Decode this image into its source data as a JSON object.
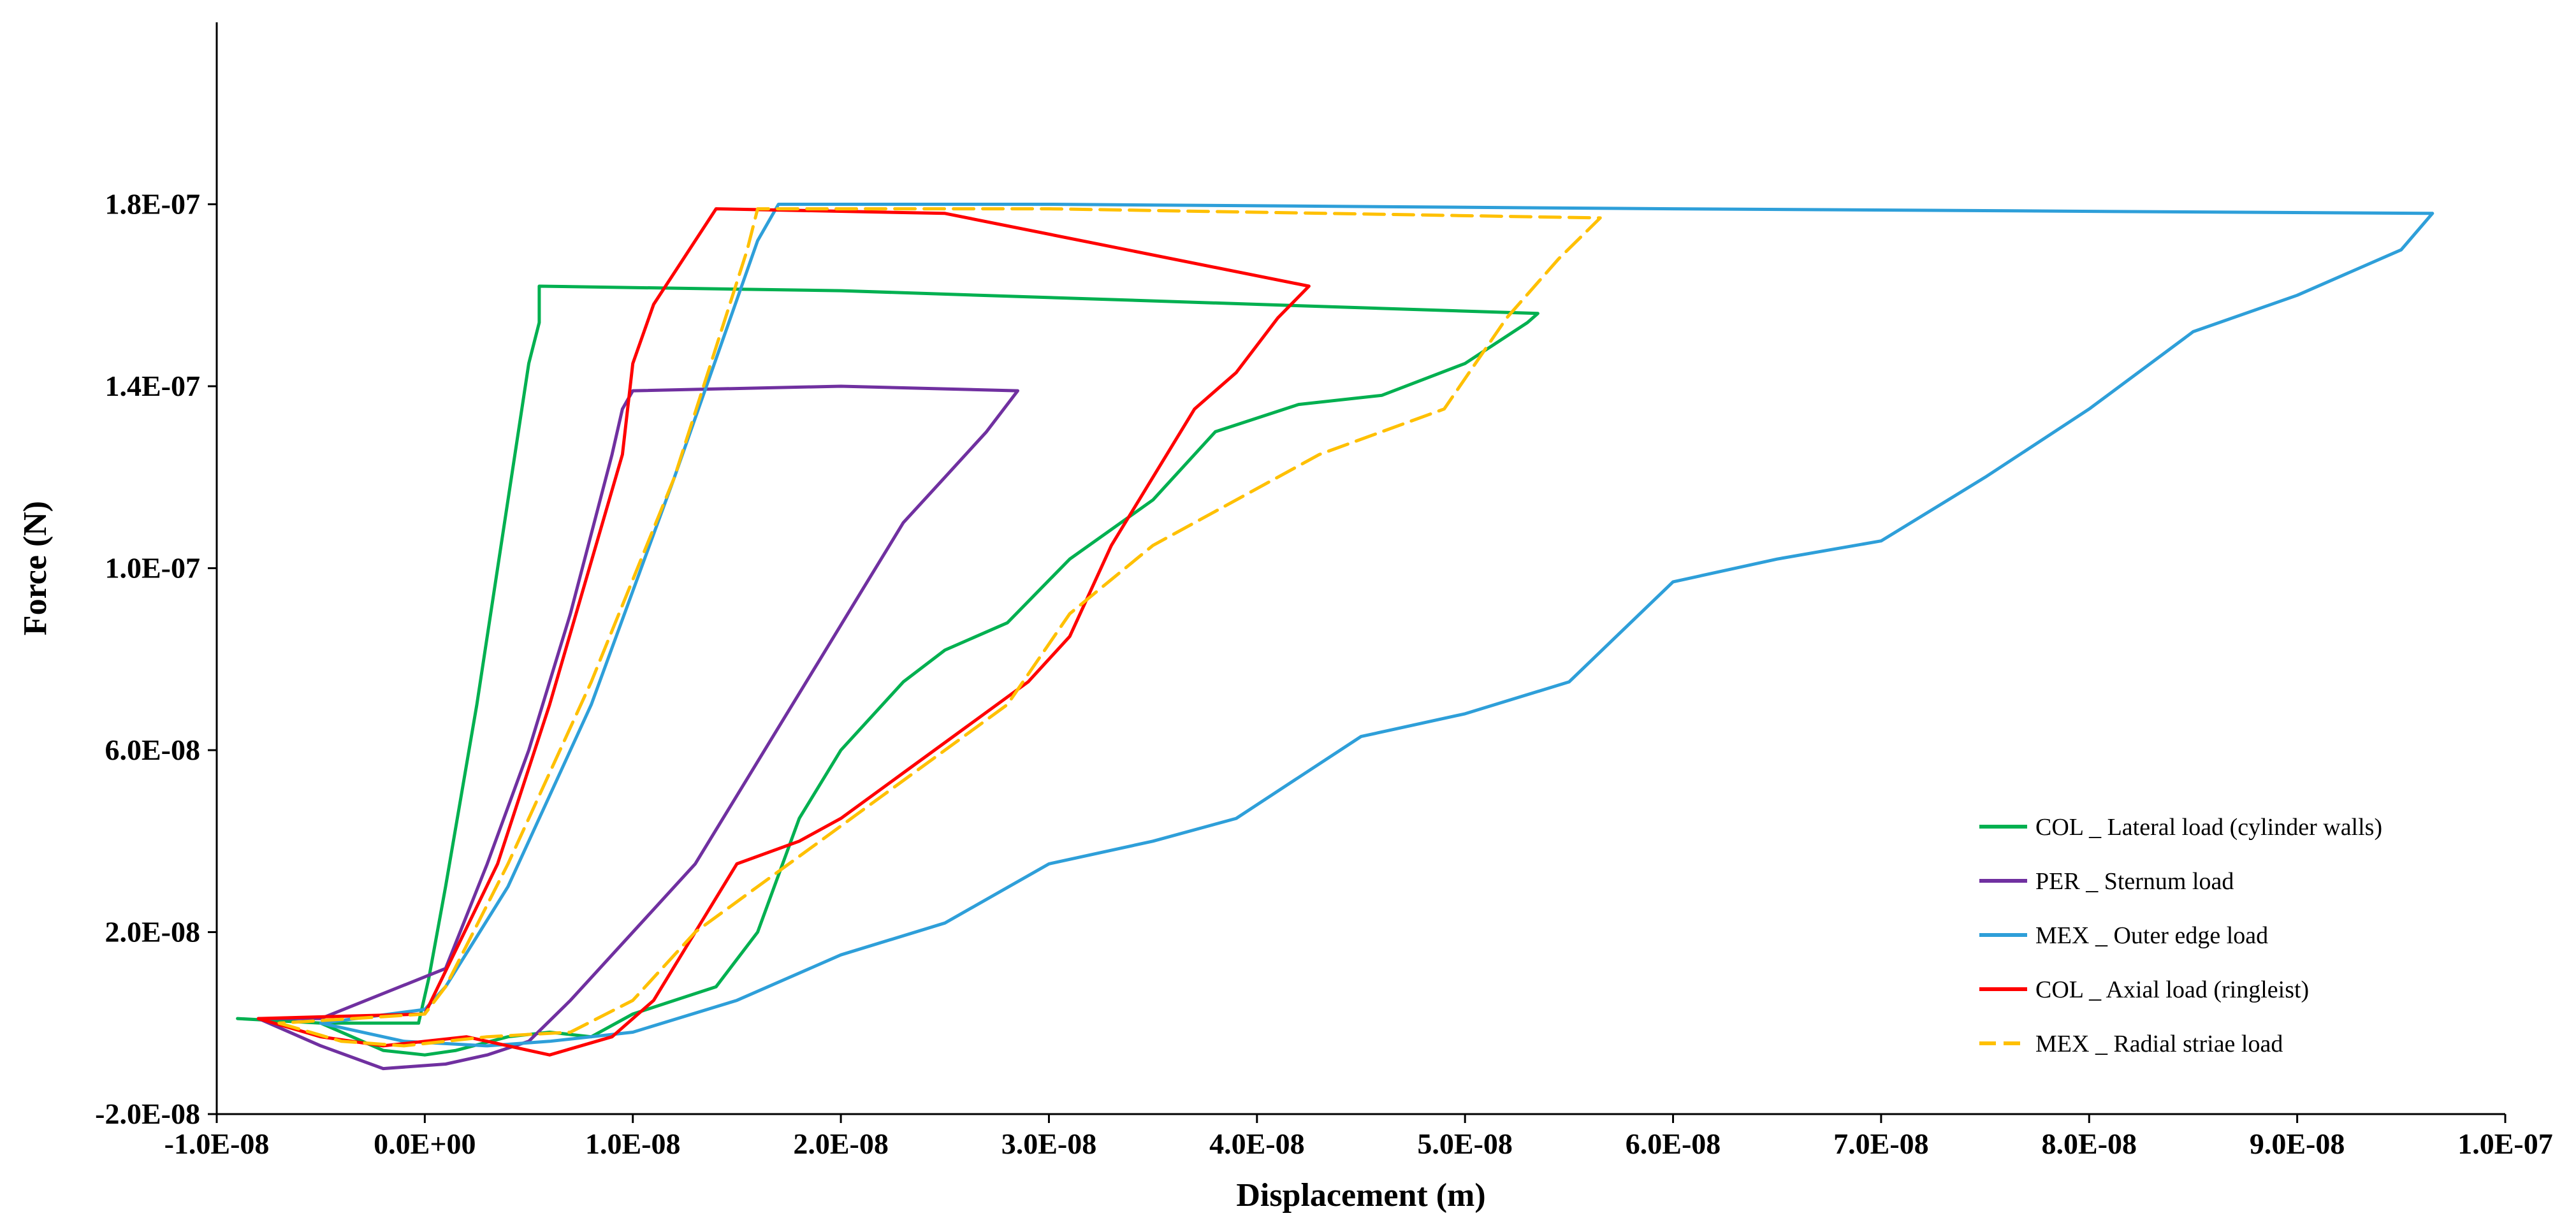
{
  "chart_data": {
    "type": "line",
    "title": "",
    "xlabel": "Displacement (m)",
    "ylabel": "Force (N)",
    "xlim": [
      -1e-08,
      1e-07
    ],
    "ylim": [
      -2e-08,
      2.2e-07
    ],
    "x_ticks": [
      {
        "value": -1e-08,
        "label": "-1.0E-08"
      },
      {
        "value": 0,
        "label": "0.0E+00"
      },
      {
        "value": 1e-08,
        "label": "1.0E-08"
      },
      {
        "value": 2e-08,
        "label": "2.0E-08"
      },
      {
        "value": 3e-08,
        "label": "3.0E-08"
      },
      {
        "value": 4e-08,
        "label": "4.0E-08"
      },
      {
        "value": 5e-08,
        "label": "5.0E-08"
      },
      {
        "value": 6e-08,
        "label": "6.0E-08"
      },
      {
        "value": 7e-08,
        "label": "7.0E-08"
      },
      {
        "value": 8e-08,
        "label": "8.0E-08"
      },
      {
        "value": 9e-08,
        "label": "9.0E-08"
      },
      {
        "value": 1e-07,
        "label": "1.0E-07"
      }
    ],
    "y_ticks": [
      {
        "value": -2e-08,
        "label": "-2.0E-08"
      },
      {
        "value": 2e-08,
        "label": "2.0E-08"
      },
      {
        "value": 6e-08,
        "label": "6.0E-08"
      },
      {
        "value": 1e-07,
        "label": "1.0E-07"
      },
      {
        "value": 1.4e-07,
        "label": "1.4E-07"
      },
      {
        "value": 1.8e-07,
        "label": "1.8E-07"
      }
    ],
    "grid": false,
    "legend_position": "bottom-right",
    "series": [
      {
        "name": "COL _ Lateral load (cylinder walls)",
        "color": "#00b050",
        "dash": "solid",
        "x": [
          -9e-09,
          -5e-09,
          -2e-09,
          0,
          1.5e-09,
          4e-09,
          6e-09,
          8e-09,
          1e-08,
          1.2e-08,
          1.4e-08,
          1.6e-08,
          1.8e-08,
          2e-08,
          2.3e-08,
          2.5e-08,
          2.8e-08,
          3.1e-08,
          3.5e-08,
          3.8e-08,
          4.2e-08,
          4.6e-08,
          5e-08,
          5.3e-08,
          5.35e-08,
          4e-08,
          2e-08,
          5.5e-09,
          5.5e-09,
          5e-09,
          4e-09,
          2.5e-09,
          1e-09,
          2e-10,
          -3e-10,
          -5e-09,
          -9e-09
        ],
        "y": [
          1e-09,
          0.0,
          -6e-09,
          -7e-09,
          -6e-09,
          -3e-09,
          -2e-09,
          -3e-09,
          2e-09,
          5e-09,
          8e-09,
          2e-08,
          4.5e-08,
          6e-08,
          7.5e-08,
          8.2e-08,
          8.8e-08,
          1.02e-07,
          1.15e-07,
          1.3e-07,
          1.36e-07,
          1.38e-07,
          1.45e-07,
          1.54e-07,
          1.56e-07,
          1.58e-07,
          1.61e-07,
          1.62e-07,
          1.54e-07,
          1.45e-07,
          1.15e-07,
          7e-08,
          3e-08,
          1e-08,
          0.0,
          0.0,
          1e-09
        ]
      },
      {
        "name": "PER _ Sternum load",
        "color": "#7030a0",
        "dash": "solid",
        "x": [
          -8e-09,
          -5e-09,
          -2e-09,
          1e-09,
          3e-09,
          5e-09,
          7e-09,
          9e-09,
          1.1e-08,
          1.3e-08,
          1.5e-08,
          1.7e-08,
          1.9e-08,
          2.1e-08,
          2.3e-08,
          2.5e-08,
          2.7e-08,
          2.85e-08,
          2e-08,
          1e-08,
          9.5e-09,
          9e-09,
          7e-09,
          5e-09,
          3e-09,
          1e-09,
          -5e-09,
          -8e-09
        ],
        "y": [
          1e-09,
          -5e-09,
          -1e-08,
          -9e-09,
          -7e-09,
          -4e-09,
          5e-09,
          1.5e-08,
          2.5e-08,
          3.5e-08,
          5e-08,
          6.5e-08,
          8e-08,
          9.5e-08,
          1.1e-07,
          1.2e-07,
          1.3e-07,
          1.39e-07,
          1.4e-07,
          1.39e-07,
          1.35e-07,
          1.25e-07,
          9e-08,
          6e-08,
          3.5e-08,
          1.2e-08,
          1e-09,
          1e-09
        ]
      },
      {
        "name": "MEX _ Outer edge load",
        "color": "#2e9fd9",
        "dash": "solid",
        "x": [
          -5e-09,
          -1e-09,
          3e-09,
          6e-09,
          1e-08,
          1.5e-08,
          2e-08,
          2.5e-08,
          3e-08,
          3.5e-08,
          3.9e-08,
          4.5e-08,
          5e-08,
          5.5e-08,
          6e-08,
          6.5e-08,
          7e-08,
          7.5e-08,
          8e-08,
          8.5e-08,
          9e-08,
          9.5e-08,
          9.65e-08,
          6e-08,
          3e-08,
          1.7e-08,
          1.6e-08,
          1.2e-08,
          8e-09,
          4e-09,
          1e-09,
          0,
          -5e-09
        ],
        "y": [
          0.0,
          -4e-09,
          -5e-09,
          -4e-09,
          -2e-09,
          5e-09,
          1.5e-08,
          2.2e-08,
          3.5e-08,
          4e-08,
          4.5e-08,
          6.3e-08,
          6.8e-08,
          7.5e-08,
          9.7e-08,
          1.02e-07,
          1.06e-07,
          1.2e-07,
          1.35e-07,
          1.52e-07,
          1.6e-07,
          1.7e-07,
          1.78e-07,
          1.79e-07,
          1.8e-07,
          1.8e-07,
          1.72e-07,
          1.2e-07,
          7e-08,
          3e-08,
          8e-09,
          3e-09,
          0.0
        ]
      },
      {
        "name": "COL _ Axial load (ringleist)",
        "color": "#ff0000",
        "dash": "solid",
        "x": [
          -8e-09,
          -5e-09,
          -2e-09,
          2e-09,
          6e-09,
          9e-09,
          1.1e-08,
          1.3e-08,
          1.5e-08,
          1.8e-08,
          2e-08,
          2.3e-08,
          2.6e-08,
          2.9e-08,
          3.1e-08,
          3.3e-08,
          3.5e-08,
          3.7e-08,
          3.9e-08,
          4.1e-08,
          4.25e-08,
          2.5e-08,
          1.4e-08,
          1.1e-08,
          1e-08,
          9.5e-09,
          6e-09,
          3.5e-09,
          0,
          -8e-09
        ],
        "y": [
          1e-09,
          -3e-09,
          -5e-09,
          -3e-09,
          -7e-09,
          -3e-09,
          5e-09,
          2e-08,
          3.5e-08,
          4e-08,
          4.5e-08,
          5.5e-08,
          6.5e-08,
          7.5e-08,
          8.5e-08,
          1.05e-07,
          1.2e-07,
          1.35e-07,
          1.43e-07,
          1.55e-07,
          1.62e-07,
          1.78e-07,
          1.79e-07,
          1.58e-07,
          1.45e-07,
          1.25e-07,
          7e-08,
          3.5e-08,
          2e-09,
          1e-09
        ]
      },
      {
        "name": "MEX _ Radial striae load",
        "color": "#ffc000",
        "dash": "dashed",
        "x": [
          -7e-09,
          -4e-09,
          -1e-09,
          3e-09,
          7e-09,
          1e-08,
          1.3e-08,
          1.6e-08,
          1.9e-08,
          2.2e-08,
          2.5e-08,
          2.8e-08,
          3.1e-08,
          3.5e-08,
          3.9e-08,
          4.3e-08,
          4.6e-08,
          4.9e-08,
          5.2e-08,
          5.45e-08,
          5.65e-08,
          3e-08,
          1.6e-08,
          1.55e-08,
          1.2e-08,
          8e-09,
          4e-09,
          1e-09,
          0,
          -7e-09
        ],
        "y": [
          0.0,
          -4e-09,
          -5e-09,
          -3e-09,
          -2e-09,
          5e-09,
          2e-08,
          3e-08,
          4e-08,
          5e-08,
          6e-08,
          7e-08,
          9e-08,
          1.05e-07,
          1.15e-07,
          1.25e-07,
          1.3e-07,
          1.35e-07,
          1.55e-07,
          1.68e-07,
          1.77e-07,
          1.79e-07,
          1.79e-07,
          1.7e-07,
          1.2e-07,
          7.5e-08,
          3.5e-08,
          8e-09,
          2e-09,
          0.0
        ]
      }
    ]
  }
}
